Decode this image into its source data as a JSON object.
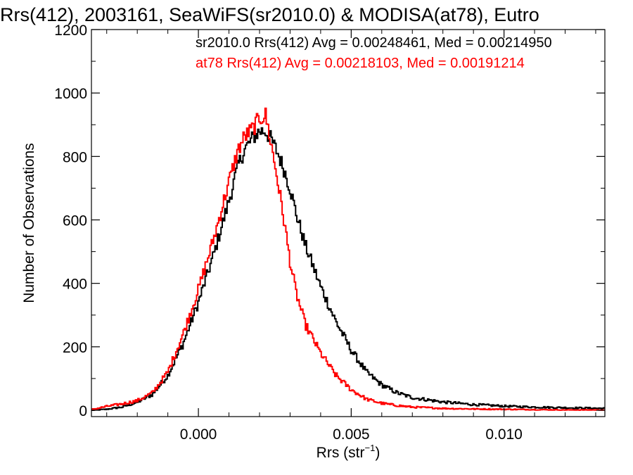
{
  "chart_data": {
    "type": "line",
    "step": true,
    "title": "Rrs(412), 2003161, SeaWiFS(sr2010.0) & MODISA(at78), Eutro",
    "xlabel_base": "Rrs (str",
    "xlabel_sup": "−1",
    "xlabel_end": ")",
    "ylabel": "Number of Observations",
    "xlim": [
      -0.0035,
      0.0133
    ],
    "ylim": [
      -20,
      1200
    ],
    "xticks": [
      {
        "value": 0.0,
        "label": "0.000"
      },
      {
        "value": 0.005,
        "label": "0.005"
      },
      {
        "value": 0.01,
        "label": "0.010"
      }
    ],
    "yticks": [
      {
        "value": 0,
        "label": "0"
      },
      {
        "value": 200,
        "label": "200"
      },
      {
        "value": 400,
        "label": "400"
      },
      {
        "value": 600,
        "label": "600"
      },
      {
        "value": 800,
        "label": "800"
      },
      {
        "value": 1000,
        "label": "1000"
      },
      {
        "value": 1200,
        "label": "1200"
      }
    ],
    "grid": false,
    "legend_position": "top-right",
    "series": [
      {
        "name": "sr2010.0 Rrs(412) Avg = 0.00248461, Med = 0.00214950",
        "color": "#000000",
        "x": [
          -0.0035,
          -0.003,
          -0.0025,
          -0.002,
          -0.0015,
          -0.001,
          -0.0005,
          0.0,
          0.0005,
          0.001,
          0.0013,
          0.0015,
          0.0018,
          0.002,
          0.0022,
          0.0024,
          0.0026,
          0.0028,
          0.003,
          0.0032,
          0.0035,
          0.004,
          0.0045,
          0.005,
          0.0055,
          0.006,
          0.0065,
          0.007,
          0.008,
          0.009,
          0.01,
          0.011,
          0.012,
          0.0133
        ],
        "y": [
          0,
          3,
          10,
          25,
          50,
          110,
          210,
          340,
          490,
          660,
          770,
          820,
          860,
          880,
          880,
          850,
          810,
          760,
          700,
          620,
          520,
          390,
          280,
          190,
          120,
          80,
          55,
          40,
          26,
          18,
          13,
          10,
          8,
          6
        ]
      },
      {
        "name": "at78 Rrs(412) Avg = 0.00218103, Med = 0.00191214",
        "color": "#ff0000",
        "x": [
          -0.0035,
          -0.003,
          -0.0025,
          -0.002,
          -0.0015,
          -0.001,
          -0.0005,
          0.0,
          0.0005,
          0.001,
          0.0013,
          0.0015,
          0.0018,
          0.002,
          0.0022,
          0.0024,
          0.0026,
          0.0028,
          0.003,
          0.0032,
          0.0035,
          0.004,
          0.0045,
          0.005,
          0.0055,
          0.006,
          0.0065,
          0.007,
          0.008,
          0.009,
          0.01,
          0.011,
          0.012,
          0.0133
        ],
        "y": [
          2,
          12,
          20,
          30,
          55,
          120,
          240,
          380,
          540,
          720,
          820,
          860,
          890,
          920,
          930,
          830,
          720,
          600,
          470,
          370,
          270,
          180,
          110,
          65,
          35,
          22,
          15,
          10,
          6,
          4,
          3,
          2,
          1,
          1
        ]
      }
    ]
  }
}
